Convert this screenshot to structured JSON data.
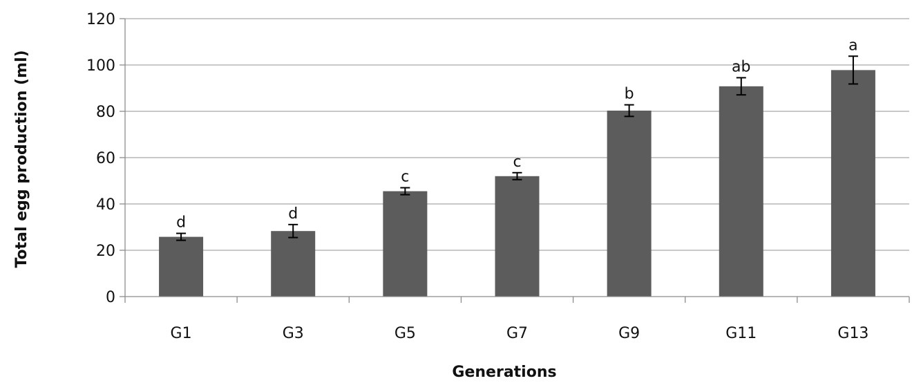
{
  "chart_data": {
    "type": "bar",
    "categories": [
      "G1",
      "G3",
      "G5",
      "G7",
      "G9",
      "G11",
      "G13"
    ],
    "values": [
      25.8,
      28.3,
      45.5,
      52.0,
      80.3,
      90.8,
      97.8
    ],
    "error": [
      1.5,
      2.8,
      1.5,
      1.5,
      2.5,
      3.7,
      6.0
    ],
    "significance_letters": [
      "d",
      "d",
      "c",
      "c",
      "b",
      "ab",
      "a"
    ],
    "xlabel": "Generations",
    "ylabel": "Total egg production (ml)",
    "ylim": [
      0,
      120
    ],
    "yticks": [
      0,
      20,
      40,
      60,
      80,
      100,
      120
    ],
    "grid": true,
    "legend": "none",
    "colors": {
      "bar": "#5c5c5c",
      "grid": "#a6a6a6",
      "axis": "#8c8c8c",
      "text": "#111111"
    }
  }
}
